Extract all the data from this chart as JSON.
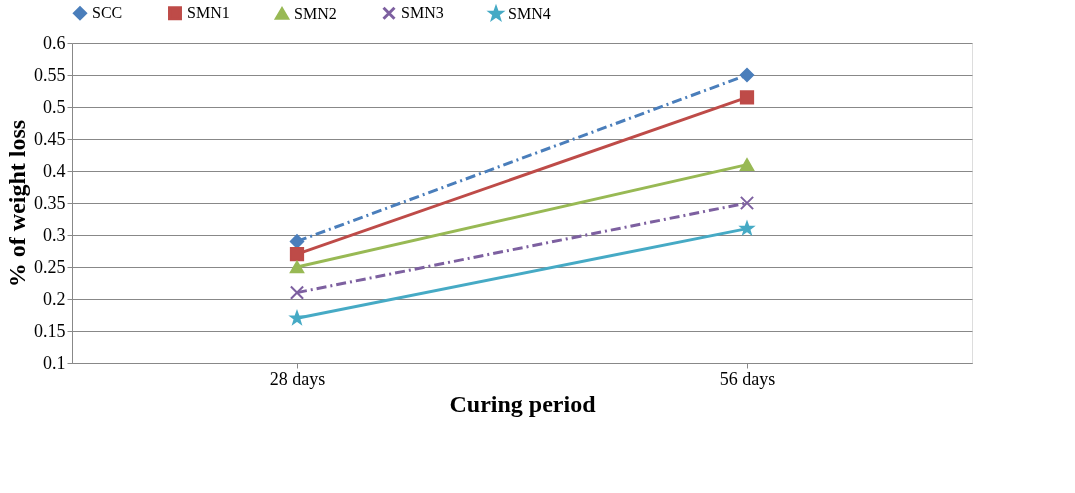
{
  "chart_data": {
    "type": "line",
    "xlabel": "Curing period",
    "ylabel": "% of weight loss",
    "categories": [
      "28 days",
      "56 days"
    ],
    "series": [
      {
        "name": "SCC",
        "color": "#4a7ebb",
        "values": [
          0.29,
          0.55
        ],
        "marker": "diamond",
        "line_style": "dashed"
      },
      {
        "name": "SMN1",
        "color": "#be4b48",
        "values": [
          0.27,
          0.515
        ],
        "marker": "square",
        "line_style": "solid"
      },
      {
        "name": "SMN2",
        "color": "#98b954",
        "values": [
          0.25,
          0.41
        ],
        "marker": "triangle",
        "line_style": "solid"
      },
      {
        "name": "SMN3",
        "color": "#7d60a0",
        "values": [
          0.21,
          0.35
        ],
        "marker": "cross",
        "line_style": "dashed"
      },
      {
        "name": "SMN4",
        "color": "#46aac5",
        "values": [
          0.17,
          0.31
        ],
        "marker": "star",
        "line_style": "solid"
      }
    ],
    "ylim": [
      0.1,
      0.6
    ],
    "yticks": [
      0.1,
      0.15,
      0.2,
      0.25,
      0.3,
      0.35,
      0.4,
      0.45,
      0.5,
      0.55,
      0.6
    ],
    "grid": "y",
    "legend": "top"
  }
}
